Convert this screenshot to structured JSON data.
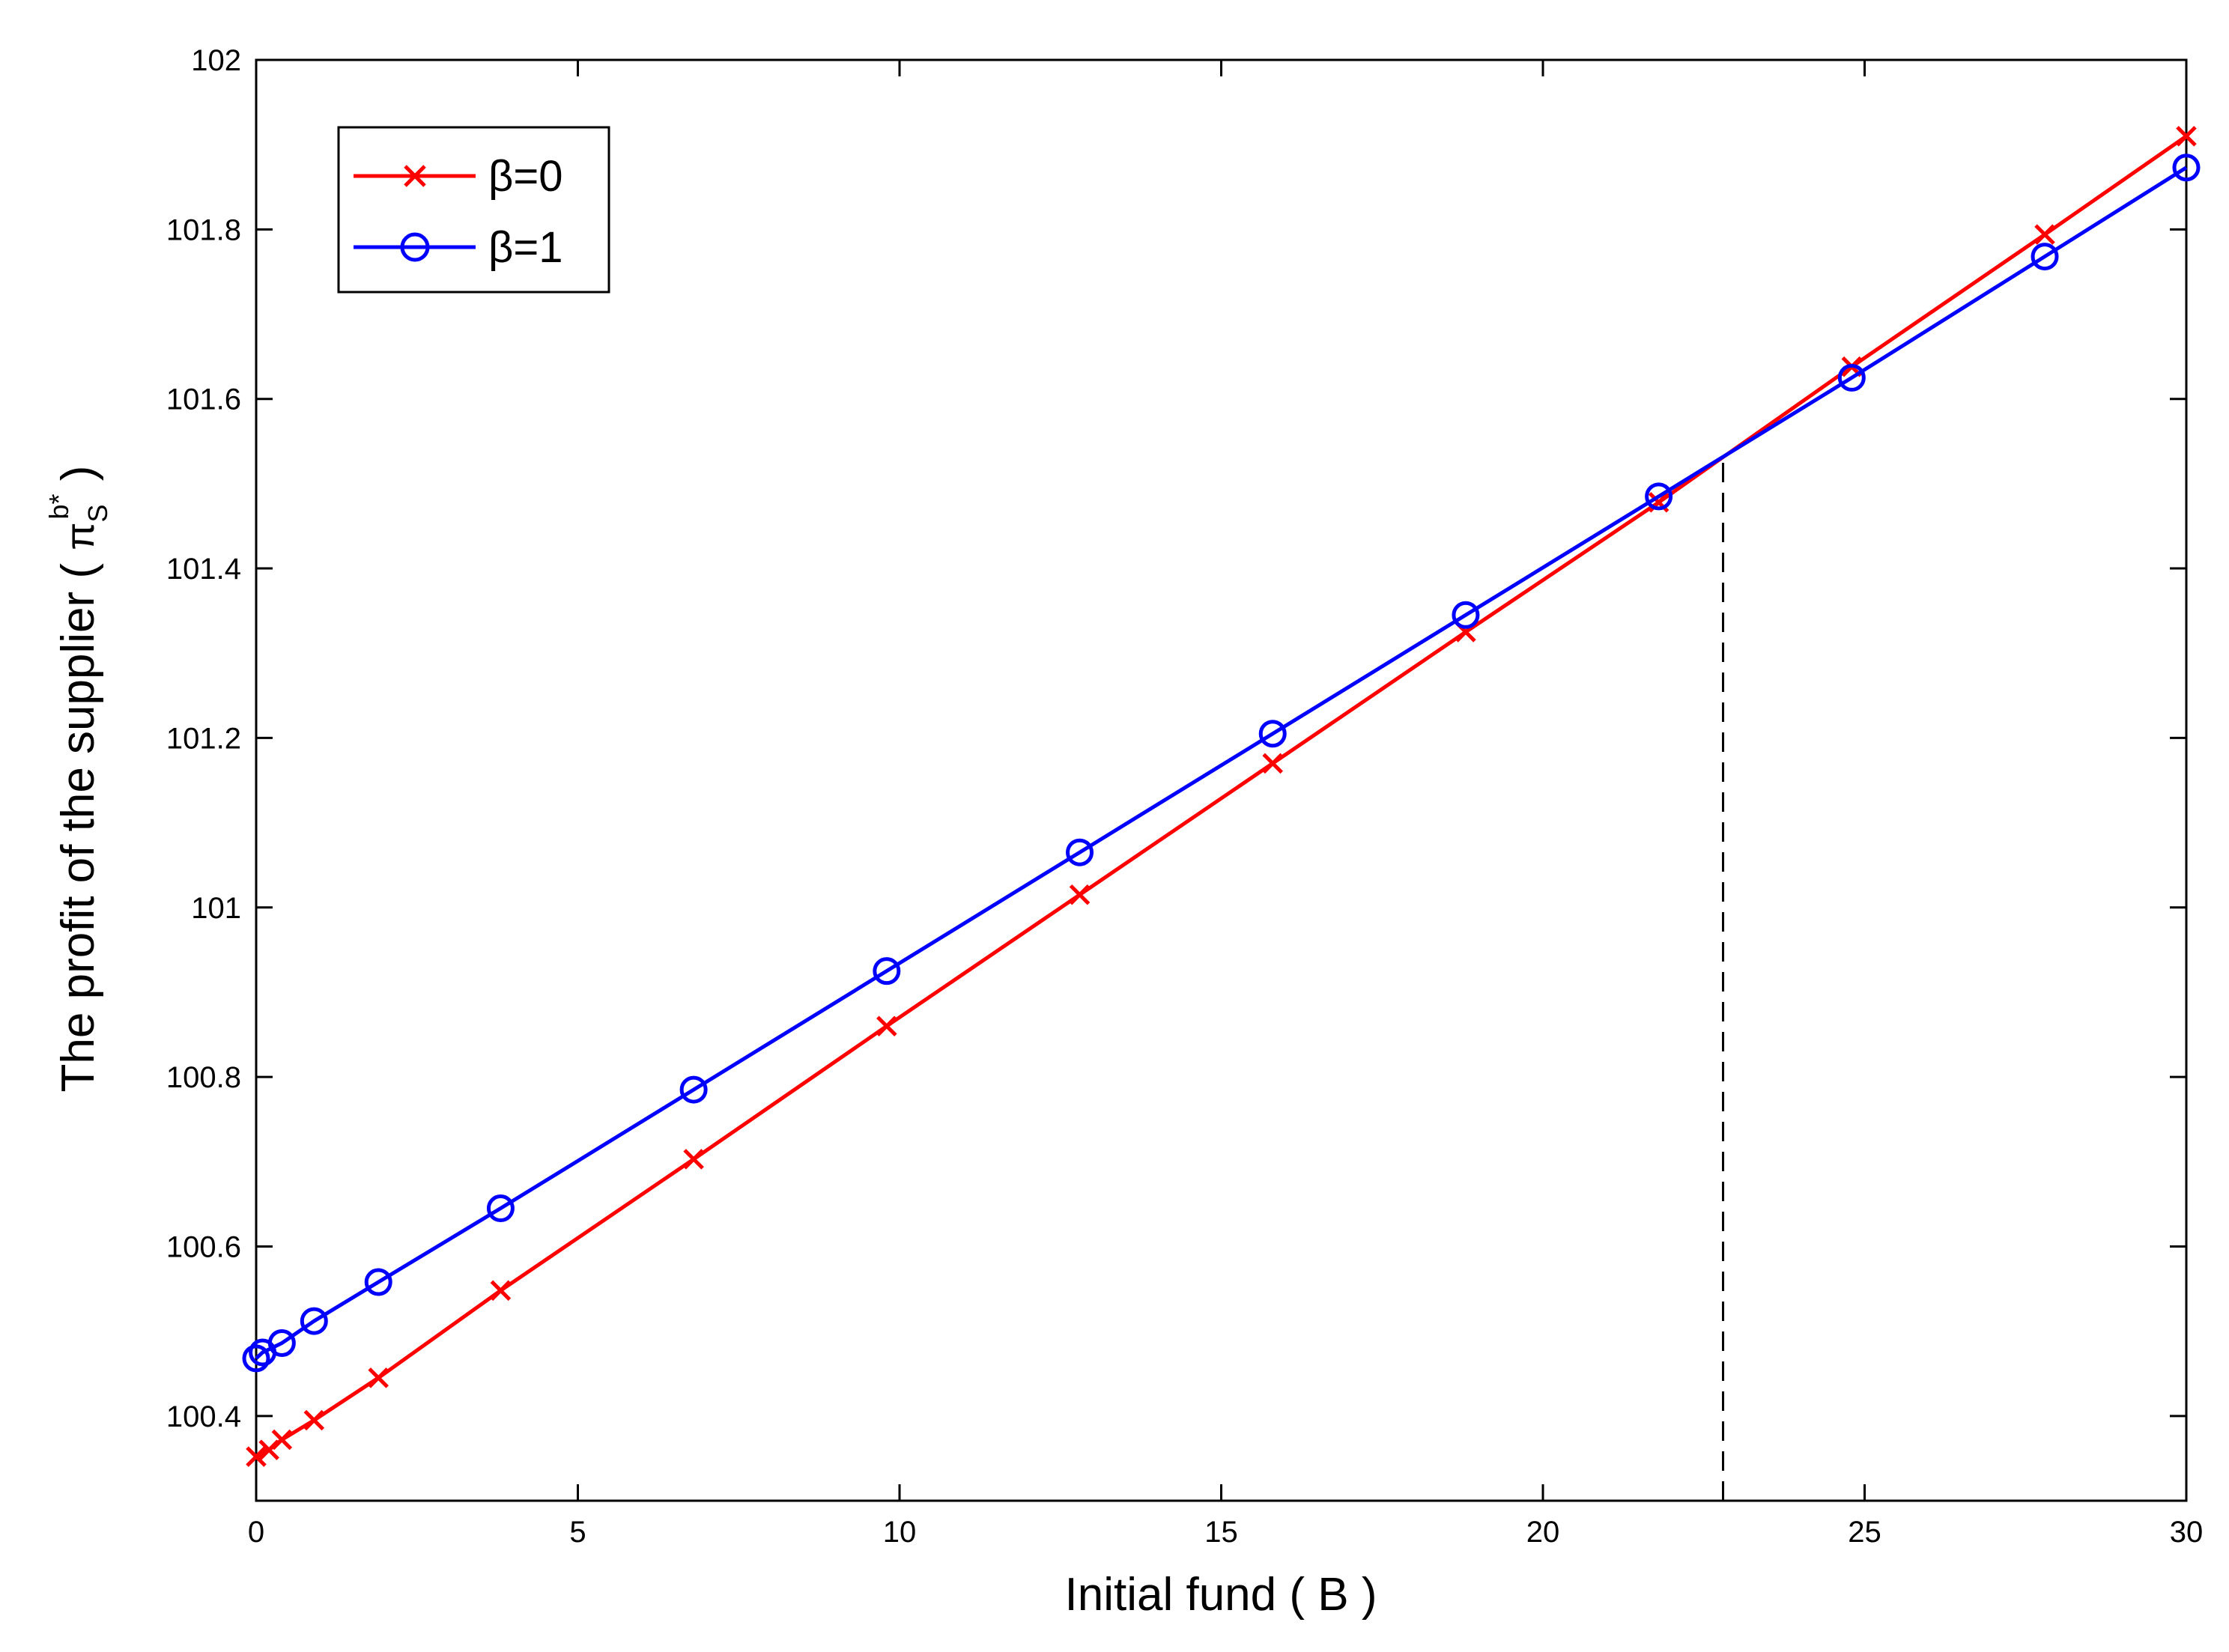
{
  "chart_data": {
    "type": "line",
    "xlabel": "Initial fund ( B )",
    "ylabel": "The profit of the supplier ( ",
    "ylabel_math": {
      "symbol": "π",
      "subscript": "S",
      "superscript": "b*",
      "suffix": " )"
    },
    "xlim": [
      0,
      30
    ],
    "ylim": [
      100.3,
      102
    ],
    "xticks": [
      0,
      5,
      10,
      15,
      20,
      25,
      30
    ],
    "xtick_labels": [
      "0",
      "5",
      "10",
      "15",
      "20",
      "25",
      "30"
    ],
    "yticks": [
      100.4,
      100.6,
      100.8,
      101,
      101.2,
      101.4,
      101.6,
      101.8,
      102
    ],
    "ytick_labels": [
      "100.4",
      "100.6",
      "100.8",
      "101",
      "101.2",
      "101.4",
      "101.6",
      "101.8",
      "102"
    ],
    "grid": false,
    "legend_position": "top-left",
    "series": [
      {
        "name": "β=0",
        "color": "#ff0000",
        "marker": "x",
        "x": [
          0,
          0.2,
          0.4,
          0.9,
          1.9,
          3.8,
          6.8,
          9.8,
          12.8,
          15.8,
          18.8,
          21.8,
          24.8,
          27.8,
          30
        ],
        "y": [
          100.352,
          100.36,
          100.372,
          100.395,
          100.445,
          100.548,
          100.703,
          100.86,
          101.015,
          101.17,
          101.325,
          101.478,
          101.638,
          101.794,
          101.91
        ]
      },
      {
        "name": "β=1",
        "color": "#0000ff",
        "marker": "o",
        "x": [
          0,
          0.1,
          0.4,
          0.9,
          1.9,
          3.8,
          6.8,
          9.8,
          12.8,
          15.8,
          18.8,
          21.8,
          24.8,
          27.8,
          30
        ],
        "y": [
          100.468,
          100.475,
          100.486,
          100.512,
          100.558,
          100.645,
          100.785,
          100.925,
          101.065,
          101.205,
          101.345,
          101.485,
          101.625,
          101.768,
          101.873
        ]
      }
    ],
    "annotations": [
      {
        "type": "vline",
        "x": 22.8,
        "y_from": 100.3,
        "y_to": 101.53,
        "style": "dashed",
        "color": "#000000"
      }
    ]
  }
}
